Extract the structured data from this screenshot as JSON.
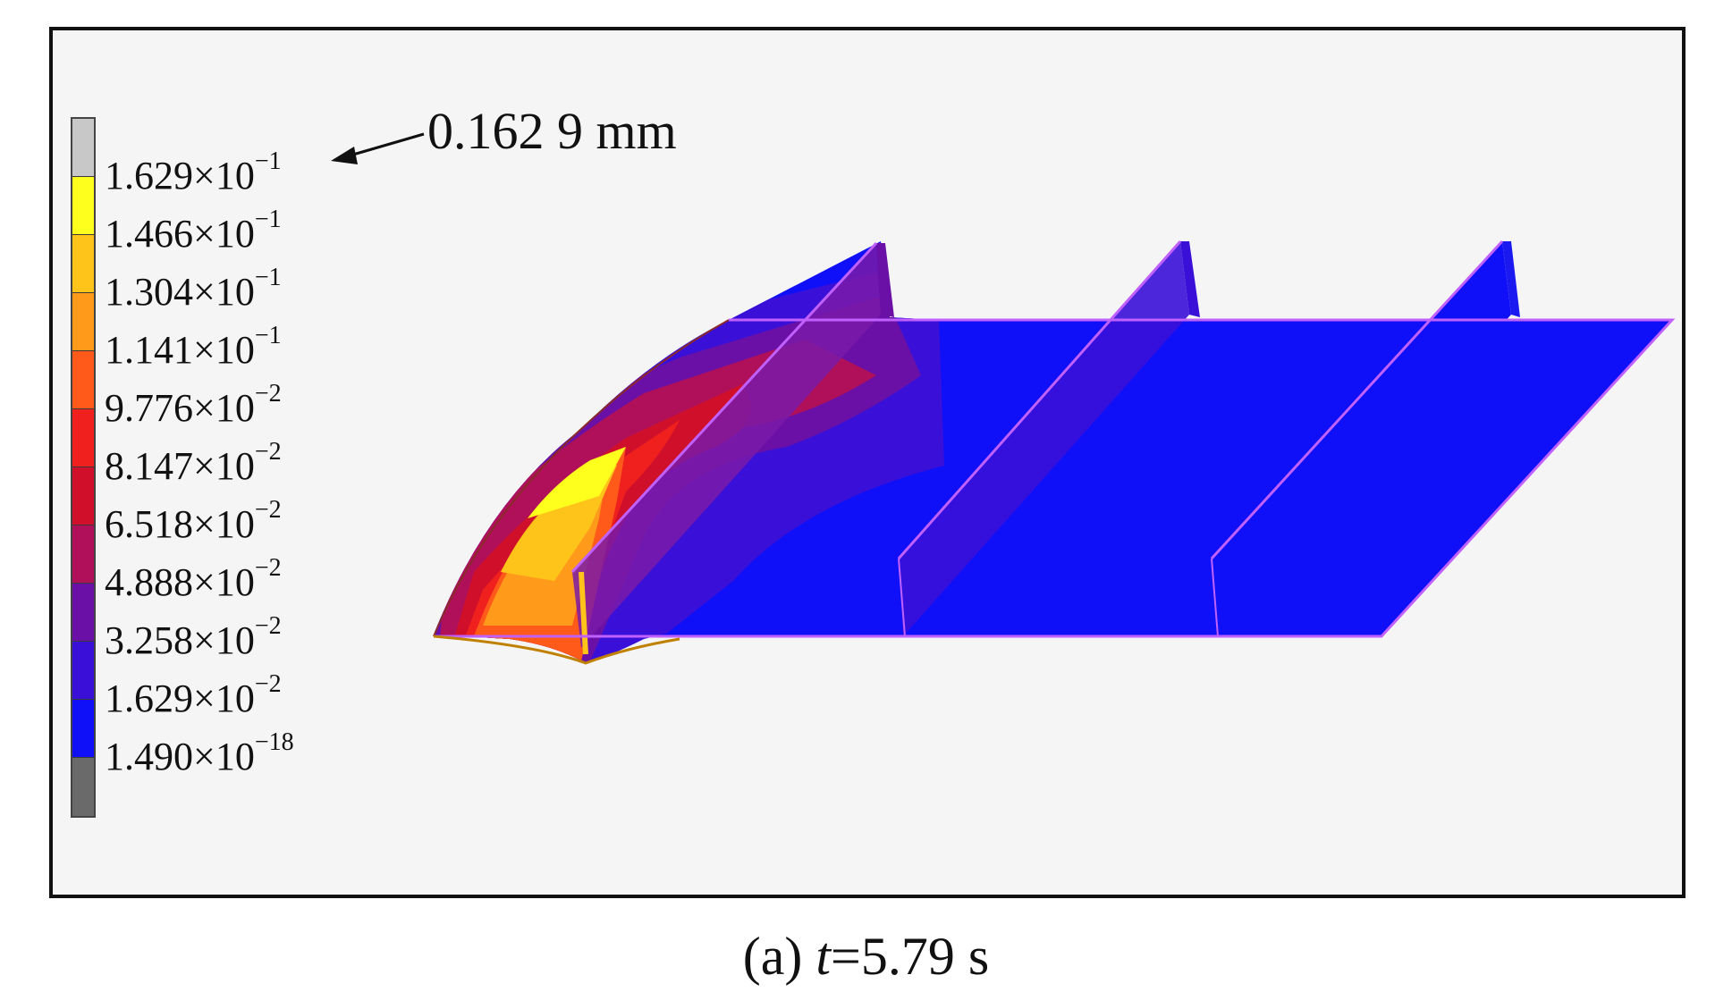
{
  "legend": {
    "entries": [
      {
        "mantissa": "1.629",
        "exponent": "−1",
        "color": "#c8c8c8"
      },
      {
        "mantissa": "1.466",
        "exponent": "−1",
        "color": "#ffff1e"
      },
      {
        "mantissa": "1.304",
        "exponent": "−1",
        "color": "#ffc41a"
      },
      {
        "mantissa": "1.141",
        "exponent": "−1",
        "color": "#ff9a1a"
      },
      {
        "mantissa": "9.776",
        "exponent": "−2",
        "color": "#ff5a1a"
      },
      {
        "mantissa": "8.147",
        "exponent": "−2",
        "color": "#f0201e"
      },
      {
        "mantissa": "6.518",
        "exponent": "−2",
        "color": "#d0102a"
      },
      {
        "mantissa": "4.888",
        "exponent": "−2",
        "color": "#b0105a"
      },
      {
        "mantissa": "3.258",
        "exponent": "−2",
        "color": "#6a10a6"
      },
      {
        "mantissa": "1.629",
        "exponent": "−2",
        "color": "#3a10d8"
      },
      {
        "mantissa": "1.490",
        "exponent": "−18",
        "color": "#1010f8"
      },
      {
        "mantissa": "",
        "exponent": "",
        "color": "#6a6a6a"
      }
    ],
    "times_sign": "×10"
  },
  "annotation": {
    "label": "0.162 9 mm"
  },
  "caption": {
    "prefix": "(a) ",
    "variable": "t",
    "suffix": "=5.79 s"
  },
  "colors": {
    "background": "#f5f5f5",
    "frame": "#111111",
    "model_blue": "#1010f8",
    "edge": "#c060ff"
  }
}
